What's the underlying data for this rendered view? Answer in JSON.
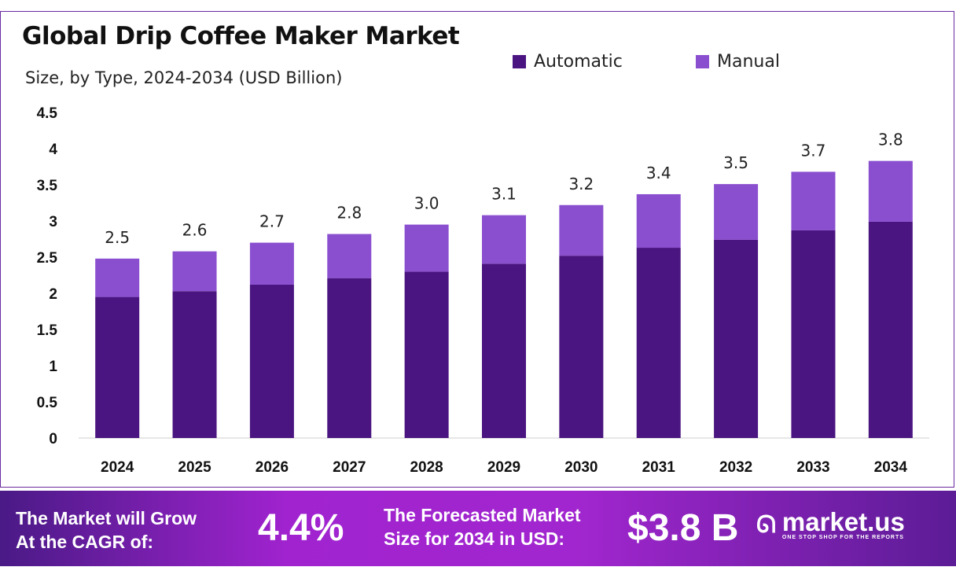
{
  "chart_data": {
    "type": "bar",
    "stacked": true,
    "title": "Global Drip Coffee Maker Market",
    "subtitle": "Size, by Type, 2024-2034 (USD Billion)",
    "categories": [
      "2024",
      "2025",
      "2026",
      "2027",
      "2028",
      "2029",
      "2030",
      "2031",
      "2032",
      "2033",
      "2034"
    ],
    "series": [
      {
        "name": "Automatic",
        "color": "#4a1580",
        "values": [
          1.95,
          2.03,
          2.12,
          2.21,
          2.3,
          2.41,
          2.52,
          2.63,
          2.74,
          2.87,
          2.99
        ]
      },
      {
        "name": "Manual",
        "color": "#8a4fcf",
        "values": [
          0.53,
          0.55,
          0.58,
          0.61,
          0.65,
          0.67,
          0.7,
          0.74,
          0.77,
          0.81,
          0.84
        ]
      }
    ],
    "totals_labels": [
      "2.5",
      "2.6",
      "2.7",
      "2.8",
      "3.0",
      "3.1",
      "3.2",
      "3.4",
      "3.5",
      "3.7",
      "3.8"
    ],
    "yticks": [
      "0",
      "0.5",
      "1",
      "1.5",
      "2",
      "2.5",
      "3",
      "3.5",
      "4",
      "4.5"
    ],
    "ylim": [
      0,
      4.5
    ],
    "grid": false,
    "legend_placement": "top-right"
  },
  "banner": {
    "cagr_label": [
      "The Market will Grow",
      "At the CAGR of:"
    ],
    "cagr_value": "4.4%",
    "forecast_label": [
      "The Forecasted Market",
      "Size for 2034 in USD:"
    ],
    "forecast_value": "$3.8 B",
    "logo_name": "market.us",
    "logo_tagline": "ONE STOP SHOP FOR THE REPORTS"
  }
}
